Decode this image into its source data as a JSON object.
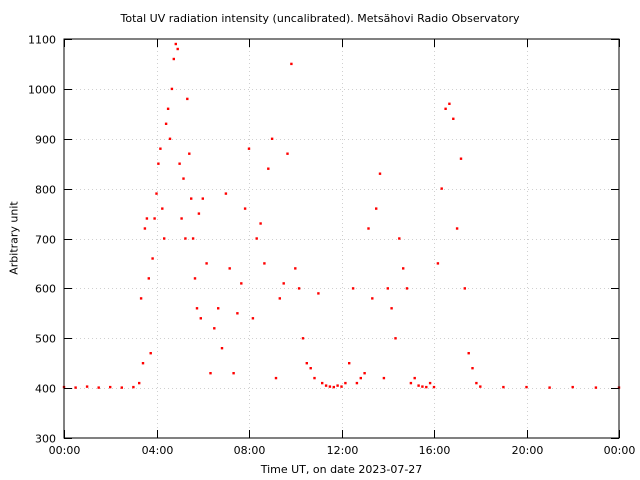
{
  "chart_data": {
    "type": "scatter",
    "title": "Total UV radiation intensity (uncalibrated). Metsähovi Radio Observatory",
    "xlabel": "Time UT, on date 2023-07-27",
    "ylabel": "Arbitrary unit",
    "xlim": [
      "00:00",
      "24:00"
    ],
    "ylim": [
      300,
      1100
    ],
    "x_ticks": [
      "00:00",
      "04:00",
      "08:00",
      "12:00",
      "16:00",
      "20:00",
      "00:00"
    ],
    "y_ticks": [
      300,
      400,
      500,
      600,
      700,
      800,
      900,
      1000,
      1100
    ],
    "grid": true,
    "series": [
      {
        "color": "#ff0000",
        "marker": "dot",
        "x": [
          "00:00",
          "00:30",
          "01:00",
          "01:30",
          "02:00",
          "02:30",
          "03:00",
          "03:15",
          "03:20",
          "03:25",
          "03:30",
          "03:35",
          "03:40",
          "03:45",
          "03:50",
          "03:55",
          "04:00",
          "04:05",
          "04:10",
          "04:15",
          "04:20",
          "04:25",
          "04:30",
          "04:35",
          "04:40",
          "04:45",
          "04:50",
          "04:55",
          "05:00",
          "05:05",
          "05:10",
          "05:15",
          "05:20",
          "05:25",
          "05:30",
          "05:35",
          "05:40",
          "05:45",
          "05:50",
          "05:55",
          "06:00",
          "06:10",
          "06:20",
          "06:30",
          "06:40",
          "06:50",
          "07:00",
          "07:10",
          "07:20",
          "07:30",
          "07:40",
          "07:50",
          "08:00",
          "08:10",
          "08:20",
          "08:30",
          "08:40",
          "08:50",
          "09:00",
          "09:10",
          "09:20",
          "09:30",
          "09:40",
          "09:50",
          "10:00",
          "10:10",
          "10:20",
          "10:30",
          "10:40",
          "10:50",
          "11:00",
          "11:10",
          "11:20",
          "11:30",
          "11:40",
          "11:50",
          "12:00",
          "12:10",
          "12:20",
          "12:30",
          "12:40",
          "12:50",
          "13:00",
          "13:10",
          "13:20",
          "13:30",
          "13:40",
          "13:50",
          "14:00",
          "14:10",
          "14:20",
          "14:30",
          "14:40",
          "14:50",
          "15:00",
          "15:10",
          "15:20",
          "15:30",
          "15:40",
          "15:50",
          "16:00",
          "16:10",
          "16:20",
          "16:30",
          "16:40",
          "16:50",
          "17:00",
          "17:10",
          "17:20",
          "17:30",
          "17:40",
          "17:50",
          "18:00",
          "19:00",
          "20:00",
          "21:00",
          "22:00",
          "23:00",
          "24:00"
        ],
        "y": [
          402,
          401,
          403,
          401,
          402,
          401,
          402,
          410,
          580,
          450,
          720,
          740,
          620,
          470,
          660,
          740,
          790,
          850,
          880,
          760,
          700,
          930,
          960,
          900,
          1000,
          1060,
          1090,
          1080,
          850,
          740,
          820,
          700,
          980,
          870,
          780,
          700,
          620,
          560,
          750,
          540,
          780,
          650,
          430,
          520,
          560,
          480,
          790,
          640,
          430,
          550,
          610,
          760,
          880,
          540,
          700,
          730,
          650,
          840,
          900,
          420,
          580,
          610,
          870,
          1050,
          640,
          600,
          500,
          450,
          440,
          420,
          590,
          410,
          405,
          403,
          402,
          405,
          403,
          410,
          450,
          600,
          410,
          420,
          430,
          720,
          580,
          760,
          830,
          420,
          600,
          560,
          500,
          700,
          640,
          600,
          410,
          420,
          405,
          403,
          402,
          410,
          402,
          650,
          800,
          960,
          970,
          940,
          720,
          860,
          600,
          470,
          440,
          410,
          403,
          402,
          402,
          401,
          402,
          401,
          401
        ]
      }
    ]
  }
}
